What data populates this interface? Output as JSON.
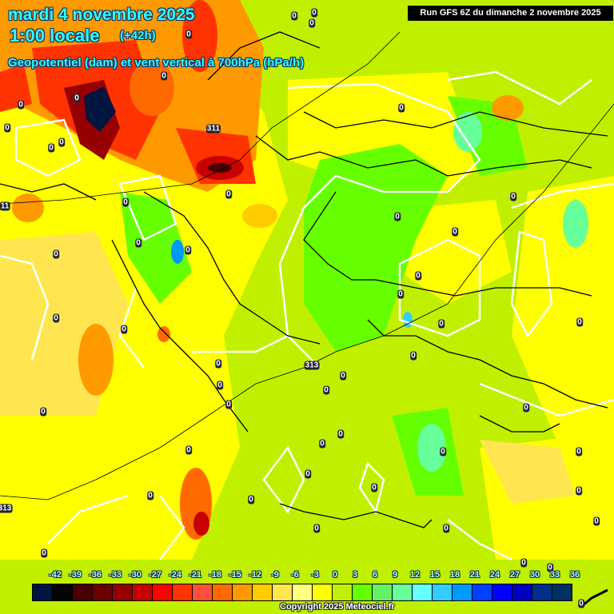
{
  "header": {
    "date": "mardi 4 novembre 2025",
    "time": "1:00 locale",
    "lead": "(+42h)",
    "parameter": "Geopotentiel (dam) et vent vertical à 700hPa (hPa/h)"
  },
  "run_info": "Run GFS 6Z du dimanche 2 novembre 2025",
  "legend": {
    "ticks": [
      "-42",
      "-39",
      "-36",
      "-33",
      "-30",
      "-27",
      "-24",
      "-21",
      "-18",
      "-15",
      "-12",
      "-9",
      "-6",
      "-3",
      "0",
      "3",
      "6",
      "9",
      "12",
      "15",
      "18",
      "21",
      "24",
      "27",
      "30",
      "33",
      "36"
    ],
    "colors": [
      "#001540",
      "#050505",
      "#4a0000",
      "#6a0000",
      "#960000",
      "#c80000",
      "#ff0000",
      "#ff3300",
      "#ff4f3a",
      "#ff6a00",
      "#ff9900",
      "#ffcc00",
      "#ffe650",
      "#ffff80",
      "#ffff00",
      "#c0f000",
      "#66ff00",
      "#66f066",
      "#66ff99",
      "#66ffff",
      "#33ccff",
      "#0099ff",
      "#0040ff",
      "#0000ff",
      "#0000c0",
      "#00308a",
      "#003060"
    ]
  },
  "copyright": "Copyright 2025 Meteociel.fr",
  "contour_labels": {
    "geopotential": [
      "311",
      "313",
      "313",
      "11"
    ],
    "zero_label": "0"
  },
  "colors": {
    "background_green": "#bff000",
    "contour_white": "#ffffff",
    "title_cyan": "#33ffff"
  }
}
